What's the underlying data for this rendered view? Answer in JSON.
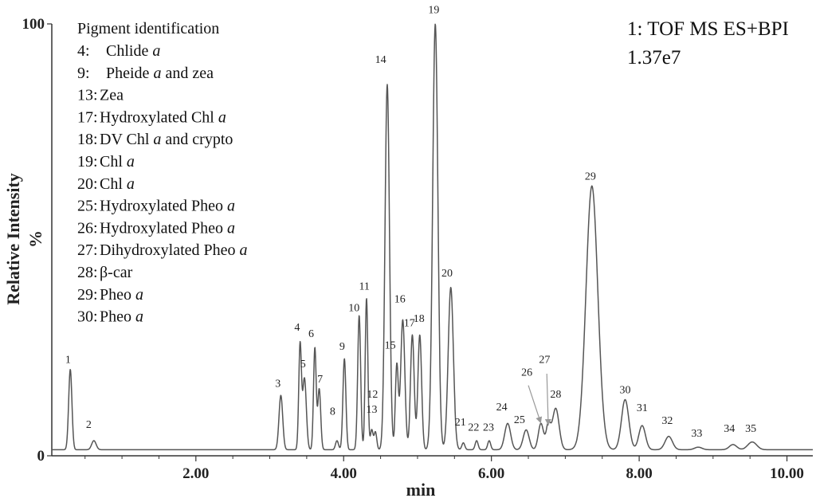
{
  "chart_data": {
    "type": "line",
    "title": "",
    "xlabel": "min",
    "ylabel": "Relative Intensity",
    "ylabel_unit": "%",
    "xlim": [
      0.05,
      10.35
    ],
    "ylim": [
      0,
      100
    ],
    "x_tick_labels": [
      "2.00",
      "4.00",
      "6.00",
      "8.00",
      "10.00"
    ],
    "x_tick_values": [
      2,
      4,
      6,
      8,
      10
    ],
    "y_tick_labels": [
      "0",
      "100"
    ],
    "y_tick_values": [
      0,
      100
    ],
    "baseline": 1.4,
    "series": [
      {
        "name": "1: TOF MS ES+BPI",
        "color": "#555555",
        "peaks": [
          {
            "x": 0.3,
            "y": 20.0,
            "w": 0.022
          },
          {
            "x": 0.62,
            "y": 3.5,
            "w": 0.03
          },
          {
            "x": 3.15,
            "y": 14.0,
            "w": 0.025
          },
          {
            "x": 3.41,
            "y": 25.5,
            "w": 0.018
          },
          {
            "x": 3.47,
            "y": 18.0,
            "w": 0.025
          },
          {
            "x": 3.61,
            "y": 25.0,
            "w": 0.018
          },
          {
            "x": 3.67,
            "y": 15.5,
            "w": 0.02
          },
          {
            "x": 3.91,
            "y": 3.5,
            "w": 0.02
          },
          {
            "x": 4.01,
            "y": 22.5,
            "w": 0.02
          },
          {
            "x": 4.21,
            "y": 32.5,
            "w": 0.02
          },
          {
            "x": 4.31,
            "y": 36.5,
            "w": 0.018
          },
          {
            "x": 4.38,
            "y": 6.0,
            "w": 0.018
          },
          {
            "x": 4.43,
            "y": 5.5,
            "w": 0.018
          },
          {
            "x": 4.59,
            "y": 86.0,
            "w": 0.03
          },
          {
            "x": 4.72,
            "y": 21.0,
            "w": 0.02
          },
          {
            "x": 4.8,
            "y": 31.5,
            "w": 0.028
          },
          {
            "x": 4.93,
            "y": 28.0,
            "w": 0.025
          },
          {
            "x": 5.03,
            "y": 28.0,
            "w": 0.025
          },
          {
            "x": 5.24,
            "y": 100.0,
            "w": 0.035
          },
          {
            "x": 5.45,
            "y": 39.0,
            "w": 0.035
          },
          {
            "x": 5.62,
            "y": 3.0,
            "w": 0.02
          },
          {
            "x": 5.8,
            "y": 3.5,
            "w": 0.02
          },
          {
            "x": 5.97,
            "y": 3.5,
            "w": 0.02
          },
          {
            "x": 6.22,
            "y": 7.5,
            "w": 0.04
          },
          {
            "x": 6.47,
            "y": 6.0,
            "w": 0.04
          },
          {
            "x": 6.67,
            "y": 7.5,
            "w": 0.035
          },
          {
            "x": 6.77,
            "y": 7.0,
            "w": 0.03
          },
          {
            "x": 6.87,
            "y": 11.0,
            "w": 0.045
          },
          {
            "x": 7.36,
            "y": 62.5,
            "w": 0.08
          },
          {
            "x": 7.81,
            "y": 13.0,
            "w": 0.05
          },
          {
            "x": 8.04,
            "y": 7.0,
            "w": 0.045
          },
          {
            "x": 8.4,
            "y": 4.5,
            "w": 0.05
          },
          {
            "x": 8.8,
            "y": 2.0,
            "w": 0.05
          },
          {
            "x": 9.27,
            "y": 2.6,
            "w": 0.05
          },
          {
            "x": 9.53,
            "y": 3.2,
            "w": 0.06
          }
        ]
      }
    ],
    "peak_labels": [
      {
        "text": "1",
        "x": 0.27,
        "y": 21.5
      },
      {
        "text": "2",
        "x": 0.55,
        "y": 6.5
      },
      {
        "text": "3",
        "x": 3.11,
        "y": 16.0
      },
      {
        "text": "4",
        "x": 3.37,
        "y": 29.0
      },
      {
        "text": "5",
        "x": 3.45,
        "y": 20.5
      },
      {
        "text": "6",
        "x": 3.56,
        "y": 27.5
      },
      {
        "text": "7",
        "x": 3.68,
        "y": 17.0
      },
      {
        "text": "8",
        "x": 3.85,
        "y": 9.5
      },
      {
        "text": "9",
        "x": 3.98,
        "y": 24.5
      },
      {
        "text": "10",
        "x": 4.14,
        "y": 33.5
      },
      {
        "text": "11",
        "x": 4.28,
        "y": 38.5
      },
      {
        "text": "12",
        "x": 4.39,
        "y": 13.5
      },
      {
        "text": "13",
        "x": 4.38,
        "y": 10.0
      },
      {
        "text": "14",
        "x": 4.5,
        "y": 91.0
      },
      {
        "text": "15",
        "x": 4.63,
        "y": 24.8
      },
      {
        "text": "16",
        "x": 4.76,
        "y": 35.5
      },
      {
        "text": "17",
        "x": 4.89,
        "y": 30.0
      },
      {
        "text": "18",
        "x": 5.02,
        "y": 31.0
      },
      {
        "text": "19",
        "x": 5.22,
        "y": 102.5
      },
      {
        "text": "20",
        "x": 5.4,
        "y": 41.5
      },
      {
        "text": "21",
        "x": 5.58,
        "y": 7.0
      },
      {
        "text": "22",
        "x": 5.76,
        "y": 5.8
      },
      {
        "text": "23",
        "x": 5.96,
        "y": 5.8
      },
      {
        "text": "24",
        "x": 6.14,
        "y": 10.5
      },
      {
        "text": "25",
        "x": 6.38,
        "y": 7.6
      },
      {
        "text": "26",
        "x": 6.48,
        "y": 18.5
      },
      {
        "text": "27",
        "x": 6.72,
        "y": 21.5
      },
      {
        "text": "28",
        "x": 6.87,
        "y": 13.5
      },
      {
        "text": "29",
        "x": 7.34,
        "y": 63.9
      },
      {
        "text": "30",
        "x": 7.81,
        "y": 14.5
      },
      {
        "text": "31",
        "x": 8.04,
        "y": 10.3
      },
      {
        "text": "32",
        "x": 8.38,
        "y": 7.4
      },
      {
        "text": "33",
        "x": 8.78,
        "y": 4.4
      },
      {
        "text": "34",
        "x": 9.22,
        "y": 5.5
      },
      {
        "text": "35",
        "x": 9.51,
        "y": 5.5
      }
    ],
    "arrows": [
      {
        "from": [
          6.5,
          16.3
        ],
        "to": [
          6.67,
          7.5
        ]
      },
      {
        "from": [
          6.75,
          19.0
        ],
        "to": [
          6.77,
          7.0
        ]
      }
    ],
    "legend_title": "Pigment identification",
    "legend": [
      {
        "num": "4:",
        "text": "Chlide",
        "italic": "a",
        "suffix": ""
      },
      {
        "num": "9:",
        "text": "Pheide",
        "italic": "a",
        "suffix": "and zea"
      },
      {
        "num": "13:",
        "text": "Zea",
        "italic": "",
        "suffix": ""
      },
      {
        "num": "17:",
        "text": "Hydroxylated Chl",
        "italic": "a",
        "suffix": ""
      },
      {
        "num": "18:",
        "text": "DV Chl",
        "italic": "a",
        "suffix": "and crypto"
      },
      {
        "num": "19:",
        "text": "Chl",
        "italic": "a",
        "suffix": ""
      },
      {
        "num": "20:",
        "text": "Chl",
        "italic": "a",
        "suffix": ""
      },
      {
        "num": "25:",
        "text": "Hydroxylated Pheo",
        "italic": "a",
        "suffix": ""
      },
      {
        "num": "26:",
        "text": "Hydroxylated Pheo",
        "italic": "a",
        "suffix": ""
      },
      {
        "num": "27:",
        "text": "Dihydroxylated Pheo",
        "italic": "a",
        "suffix": ""
      },
      {
        "num": "28:",
        "text": "β-car",
        "italic": "",
        "suffix": ""
      },
      {
        "num": "29:",
        "text": "Pheo",
        "italic": "a",
        "suffix": ""
      },
      {
        "num": "30:",
        "text": "Pheo",
        "italic": "a",
        "suffix": ""
      }
    ],
    "info_line1": "1: TOF MS ES+BPI",
    "info_line2": "1.37e7"
  }
}
